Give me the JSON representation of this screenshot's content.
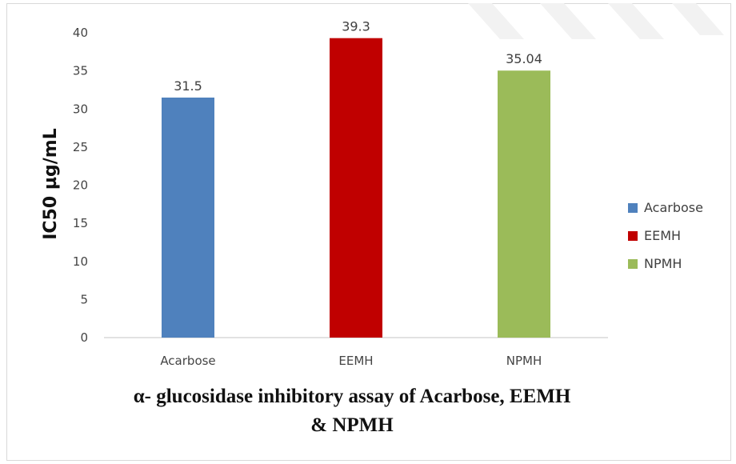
{
  "chart_data": {
    "type": "bar",
    "categories": [
      "Acarbose",
      "EEMH",
      "NPMH"
    ],
    "values": [
      31.5,
      39.3,
      35.04
    ],
    "data_labels": [
      "31.5",
      "39.3",
      "35.04"
    ],
    "ylabel": "IC50 µg/mL",
    "xlabel": "",
    "ylim": [
      0,
      40
    ],
    "yticks": [
      "0",
      "5",
      "10",
      "15",
      "20",
      "25",
      "30",
      "35",
      "40"
    ],
    "grid": false,
    "legend": {
      "placement": "right",
      "entries": [
        "Acarbose",
        "EEMH",
        "NPMH"
      ]
    },
    "colors": [
      "#4f81bd",
      "#c00000",
      "#9bbb59"
    ]
  },
  "caption": {
    "line1": "α- glucosidase inhibitory assay of Acarbose, EEMH",
    "line2": "& NPMH"
  },
  "axis_color": "#d9d9d9"
}
